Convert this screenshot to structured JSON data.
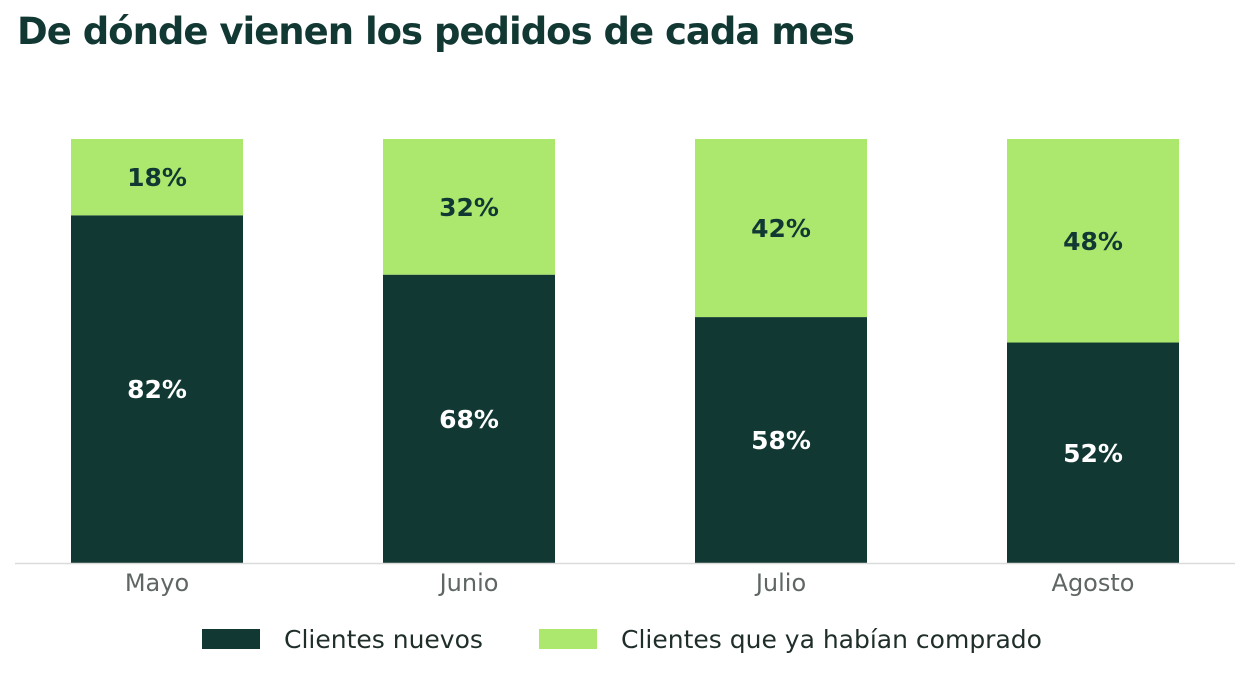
{
  "title": "De dónde vienen los pedidos de cada mes",
  "colors": {
    "nuevos": "#123833",
    "recurrentes": "#ade86e",
    "axis": "#d9dcda",
    "label_on_dark": "#ffffff",
    "label_on_light": "#123833"
  },
  "chart_data": {
    "type": "bar",
    "stacked": true,
    "categories": [
      "Mayo",
      "Junio",
      "Julio",
      "Agosto"
    ],
    "series": [
      {
        "name": "Clientes nuevos",
        "values": [
          82,
          68,
          58,
          52
        ],
        "labels": [
          "82%",
          "68%",
          "58%",
          "52%"
        ]
      },
      {
        "name": "Clientes que ya habían comprado",
        "values": [
          18,
          32,
          42,
          48
        ],
        "labels": [
          "18%",
          "32%",
          "42%",
          "48%"
        ]
      }
    ],
    "ylim": [
      0,
      100
    ],
    "grid": false,
    "legend": "bottom"
  }
}
